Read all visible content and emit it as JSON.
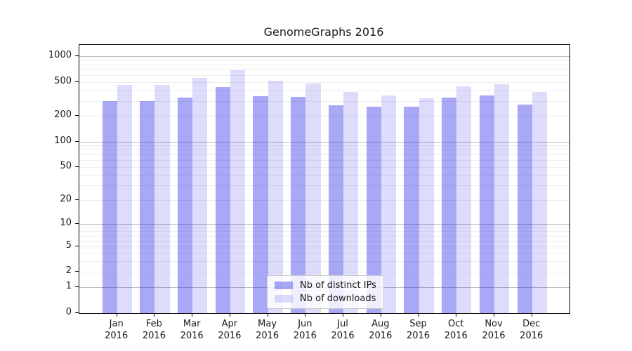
{
  "chart_data": {
    "type": "bar",
    "title": "GenomeGraphs 2016",
    "scale": "log1p",
    "ylim": [
      0,
      1364
    ],
    "grid": "both",
    "legend_position": "lower-center",
    "y_ticks": [
      1000,
      500,
      200,
      100,
      50,
      20,
      10,
      5,
      2,
      1,
      0
    ],
    "major_gridlines": [
      1,
      10,
      100,
      1000
    ],
    "minor_gridlines": [
      2,
      3,
      4,
      5,
      6,
      7,
      8,
      9,
      20,
      30,
      40,
      50,
      60,
      70,
      80,
      90,
      200,
      300,
      400,
      500,
      600,
      700,
      800,
      900
    ],
    "categories": [
      "Jan",
      "Feb",
      "Mar",
      "Apr",
      "May",
      "Jun",
      "Jul",
      "Aug",
      "Sep",
      "Oct",
      "Nov",
      "Dec"
    ],
    "year": "2016",
    "series": [
      {
        "name": "Nb of distinct IPs",
        "color": "rgba(15,15,230,0.36)",
        "values": [
          300,
          300,
          330,
          440,
          345,
          335,
          267,
          258,
          256,
          328,
          350,
          274
        ]
      },
      {
        "name": "Nb of downloads",
        "color": "rgba(15,15,230,0.14)",
        "values": [
          465,
          465,
          560,
          690,
          520,
          480,
          385,
          350,
          323,
          445,
          470,
          386
        ]
      }
    ]
  },
  "colors": {
    "major_grid": "#bdbdbd",
    "minor_grid": "#ededed",
    "spine": "#000000",
    "text": "#1a1a1a",
    "legend_border": "#cccccc",
    "background": "#ffffff"
  }
}
